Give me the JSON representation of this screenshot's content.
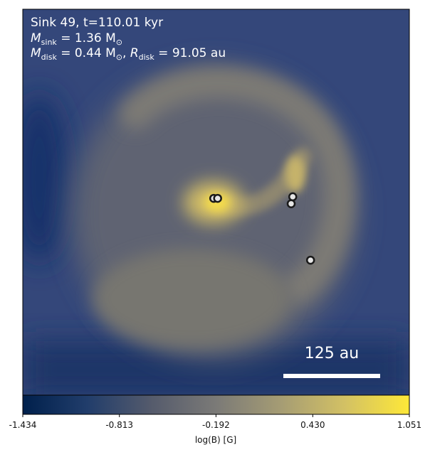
{
  "figure": {
    "title_line1": "Sink 49, t=110.01 kyr",
    "title_line2": {
      "sym": "M",
      "sub": "sink",
      "rest": " = 1.36 M",
      "sun_sub": "⊙"
    },
    "title_line3": {
      "m_sym": "M",
      "m_sub": "disk",
      "m_rest": " = 0.44 M",
      "m_sun": "⊙",
      "sep": ", ",
      "r_sym": "R",
      "r_sub": "disk",
      "r_rest": " = 91.05 au"
    },
    "scalebar_label": "125 au"
  },
  "chart_data": {
    "type": "heatmap",
    "title": "Sink 49, t=110.01 kyr",
    "quantity": "log(B)",
    "colorbar": {
      "label": "log(B) [G]",
      "min": -1.434,
      "max": 1.051,
      "ticks": [
        "-1.434",
        "-0.813",
        "-0.192",
        "0.430",
        "1.051"
      ],
      "colormap": "cividis",
      "colors": [
        "#00204c",
        "#213d6b",
        "#555b6c",
        "#7b7a77",
        "#a59c74",
        "#d3c164",
        "#fee838"
      ]
    },
    "scale_bar": {
      "length": 125,
      "unit": "au"
    },
    "sinks": [
      {
        "id": "s1",
        "x_au": -3,
        "y_au": 5
      },
      {
        "id": "s2",
        "x_au": 2,
        "y_au": 5
      },
      {
        "id": "s3",
        "x_au": 99,
        "y_au": 7
      },
      {
        "id": "s4",
        "x_au": 97,
        "y_au": -2
      },
      {
        "id": "s5",
        "x_au": 122,
        "y_au": -75
      }
    ]
  }
}
